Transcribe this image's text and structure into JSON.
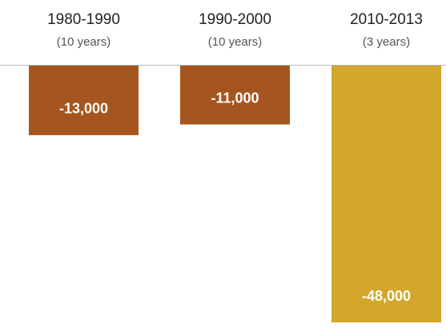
{
  "chart_data": {
    "type": "bar",
    "categories": [
      "1980-1990",
      "1990-2000",
      "2010-2013"
    ],
    "category_notes": [
      "(10 years)",
      "(10 years)",
      "(3 years)"
    ],
    "values": [
      -13000,
      -11000,
      -48000
    ],
    "value_labels": [
      "-13,000",
      "-11,000",
      "-48,000"
    ],
    "colors": [
      "#a5561f",
      "#a5561f",
      "#d3a62c"
    ]
  }
}
